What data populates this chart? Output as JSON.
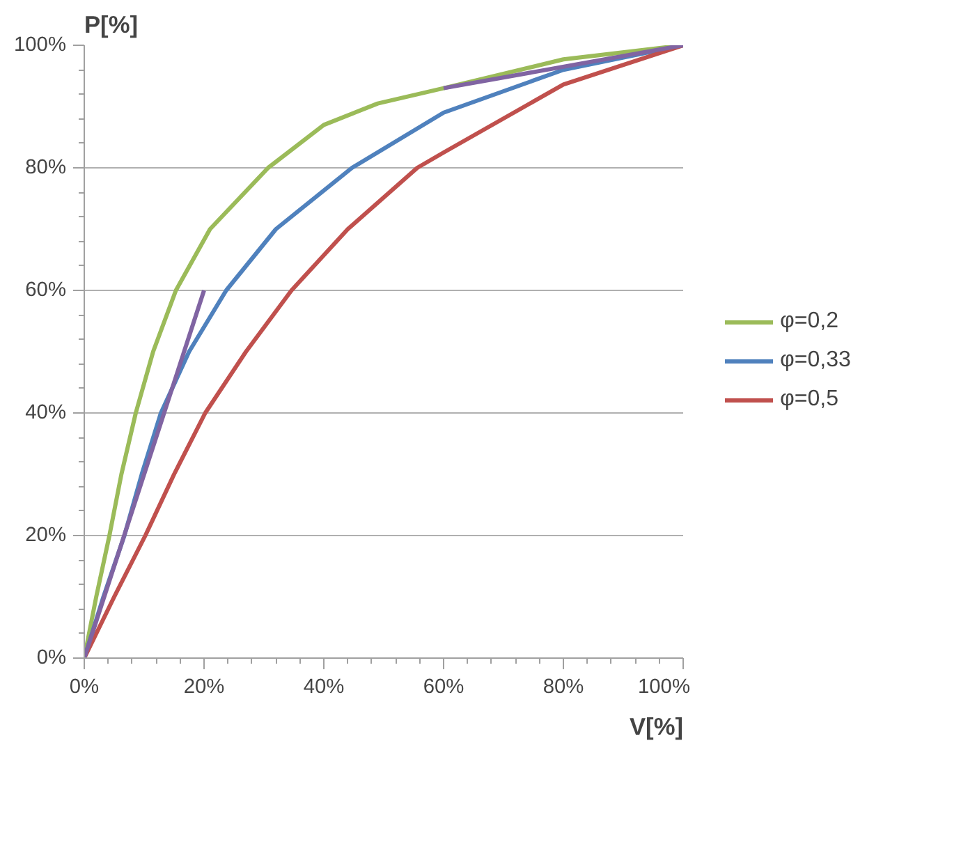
{
  "chart_data": {
    "type": "line",
    "xlabel": "V[%]",
    "ylabel": "P[%]",
    "xlim": [
      0,
      100
    ],
    "ylim": [
      0,
      100
    ],
    "xticks": [
      {
        "value": 0,
        "label": "0%"
      },
      {
        "value": 20,
        "label": "20%"
      },
      {
        "value": 40,
        "label": "40%"
      },
      {
        "value": 60,
        "label": "60%"
      },
      {
        "value": 80,
        "label": "80%"
      },
      {
        "value": 100,
        "label": "100%"
      }
    ],
    "yticks": [
      {
        "value": 0,
        "label": "0%"
      },
      {
        "value": 20,
        "label": "20%"
      },
      {
        "value": 40,
        "label": "40%"
      },
      {
        "value": 60,
        "label": "60%"
      },
      {
        "value": 80,
        "label": "80%"
      },
      {
        "value": 100,
        "label": "100%"
      }
    ],
    "grid": "y",
    "legend": "right",
    "marker": "none",
    "line_style": "solid",
    "series": [
      {
        "name": "φ=0,2",
        "color": "#9bbb59",
        "x": [
          0,
          2,
          4.2,
          6.2,
          8.6,
          11.5,
          15.3,
          21,
          30.7,
          40,
          49,
          60,
          80,
          100
        ],
        "values": [
          0,
          10,
          20,
          30,
          40,
          50,
          60,
          70,
          80,
          87,
          90.5,
          93,
          97.7,
          100
        ]
      },
      {
        "name": "φ=0,33",
        "color": "#4f81bd",
        "x": [
          0,
          3.2,
          6.7,
          9.6,
          12.8,
          17.5,
          23.7,
          32,
          44.7,
          60,
          80,
          100
        ],
        "values": [
          0,
          10,
          20,
          30,
          40,
          50,
          60,
          70,
          80,
          89,
          96,
          100
        ]
      },
      {
        "name": "φ=0,5",
        "color": "#c0504d",
        "x": [
          0,
          5,
          10.2,
          15,
          20.2,
          27,
          34.6,
          44,
          55.6,
          60,
          80,
          100
        ],
        "values": [
          0,
          10,
          20,
          30,
          40,
          50,
          60,
          70,
          80,
          82.5,
          93.6,
          100
        ]
      },
      {
        "color": "#8064a2",
        "x": [
          0,
          20
        ],
        "values": [
          0,
          60
        ]
      },
      {
        "color": "#8064a2",
        "x": [
          60,
          100
        ],
        "values": [
          93,
          100
        ]
      }
    ]
  }
}
